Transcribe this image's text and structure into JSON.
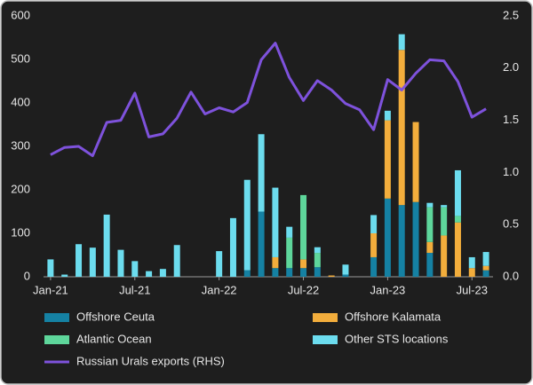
{
  "chart_data": {
    "type": "bar",
    "stacked": true,
    "categories": [
      "Jan-21",
      null,
      null,
      null,
      null,
      null,
      "Jul-21",
      null,
      null,
      null,
      null,
      null,
      "Jan-22",
      null,
      null,
      null,
      null,
      null,
      "Jul-22",
      null,
      null,
      null,
      null,
      null,
      "Jan-23",
      null,
      null,
      null,
      null,
      null,
      "Jul-23",
      null
    ],
    "series": [
      {
        "name": "Offshore Ceuta",
        "color": "#1581a3",
        "values": [
          0,
          0,
          0,
          0,
          0,
          0,
          0,
          0,
          0,
          0,
          0,
          0,
          0,
          0,
          15,
          150,
          20,
          20,
          20,
          22,
          0,
          5,
          0,
          45,
          180,
          165,
          172,
          55,
          0,
          0,
          0,
          15
        ]
      },
      {
        "name": "Offshore Kalamata",
        "color": "#f2ad3c",
        "values": [
          0,
          0,
          0,
          0,
          0,
          0,
          0,
          0,
          0,
          0,
          0,
          0,
          0,
          0,
          0,
          0,
          25,
          0,
          20,
          0,
          3,
          0,
          0,
          55,
          180,
          357,
          184,
          25,
          95,
          125,
          20,
          10
        ]
      },
      {
        "name": "Atlantic Ocean",
        "color": "#5ed69b",
        "values": [
          0,
          0,
          0,
          0,
          0,
          0,
          0,
          0,
          0,
          0,
          0,
          0,
          0,
          0,
          0,
          0,
          0,
          70,
          148,
          33,
          0,
          0,
          0,
          0,
          0,
          0,
          0,
          80,
          65,
          15,
          0,
          0
        ]
      },
      {
        "name": "Other STS locations",
        "color": "#6cdcee",
        "values": [
          40,
          5,
          75,
          67,
          143,
          62,
          36,
          13,
          18,
          73,
          0,
          0,
          59,
          135,
          208,
          178,
          160,
          25,
          0,
          13,
          0,
          23,
          0,
          42,
          22,
          36,
          0,
          10,
          5,
          105,
          25,
          32
        ]
      },
      {
        "name": "Russian Urals exports (RHS)",
        "color": "#7e52dc",
        "type": "line",
        "axis": "y2",
        "values": [
          1.17,
          1.24,
          1.25,
          1.16,
          1.48,
          1.5,
          1.76,
          1.34,
          1.37,
          1.52,
          1.77,
          1.56,
          1.62,
          1.58,
          1.67,
          2.08,
          2.24,
          1.91,
          1.69,
          1.88,
          1.79,
          1.66,
          1.6,
          1.41,
          1.89,
          1.79,
          1.95,
          2.08,
          2.07,
          1.87,
          1.53,
          1.61
        ]
      }
    ],
    "ylim": [
      0,
      600
    ],
    "yticks": [
      0,
      100,
      200,
      300,
      400,
      500,
      600
    ],
    "y2lim": [
      0,
      2.5
    ],
    "y2ticks": [
      {
        "value": 0,
        "label": "0.0"
      },
      0.5,
      {
        "value": 1,
        "label": "1.0"
      },
      1.5,
      {
        "value": 2,
        "label": "2.0"
      },
      2.5
    ],
    "grid": false,
    "legend": "bottom"
  }
}
